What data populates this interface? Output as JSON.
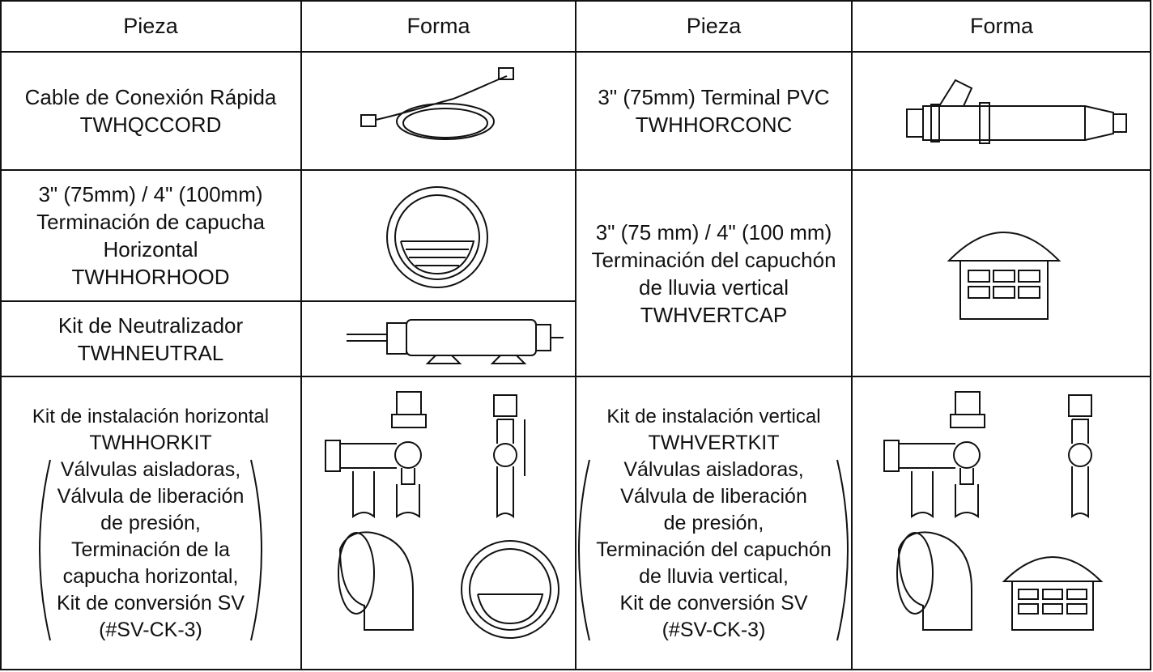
{
  "header": [
    "Pieza",
    "Forma",
    "Pieza",
    "Forma"
  ],
  "parts": [
    {
      "lines": [
        "Cable de Conexión Rápida",
        "TWHQCCORD"
      ]
    },
    {
      "lines": [
        "3\" (75mm) Terminal PVC",
        "TWHHORCONC"
      ]
    },
    {
      "lines": [
        "3\" (75mm) / 4\" (100mm)",
        "Terminación de capucha",
        "Horizontal",
        "TWHHORHOOD"
      ]
    },
    {
      "lines": [
        "3\" (75 mm) / 4\" (100 mm)",
        "Terminación del capuchón",
        "de lluvia vertical",
        "TWHVERTCAP"
      ]
    },
    {
      "lines": [
        "Kit de Neutralizador",
        "TWHNEUTRAL"
      ]
    }
  ],
  "kits": [
    {
      "name": "Kit de instalación horizontal",
      "code": "TWHHORKIT",
      "contents": [
        "Válvulas aisladoras,",
        "Válvula de liberación",
        "de presión,",
        "Terminación de la",
        "capucha horizontal,",
        "Kit de conversión SV",
        "(#SV-CK-3)"
      ]
    },
    {
      "name": "Kit de instalación vertical",
      "code": "TWHVERTKIT",
      "contents": [
        "Válvulas aisladoras,",
        "Válvula de liberación",
        "de presión,",
        "Terminación del capuchón",
        "de lluvia vertical,",
        "Kit de conversión SV",
        "(#SV-CK-3)"
      ]
    }
  ]
}
